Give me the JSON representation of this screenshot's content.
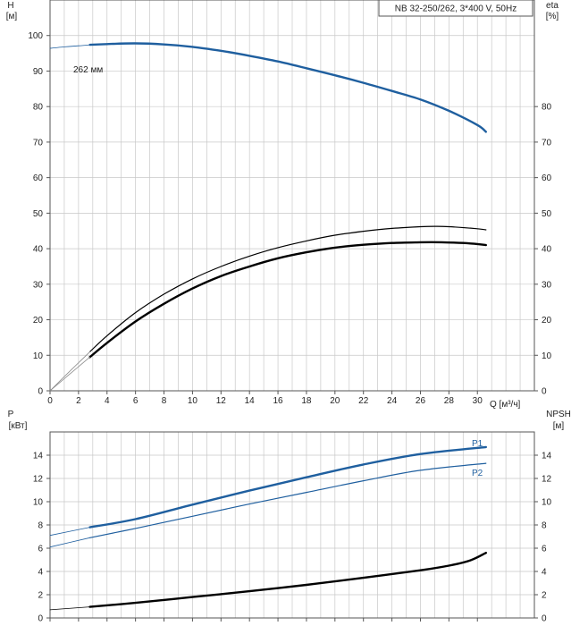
{
  "colors": {
    "blue": "#1f5f9f",
    "black": "#000000",
    "grid": "#c8c8c8",
    "axis": "#555555"
  },
  "legend": {
    "text": "NB 32-250/262, 3*400 V, 50Hz"
  },
  "chart_data": [
    {
      "type": "line",
      "id": "top",
      "left_axis": {
        "name": "H",
        "unit": "[м]"
      },
      "right_axis": {
        "name": "eta",
        "unit": "[%]"
      },
      "x_axis": {
        "label": "Q [м³/ч]"
      },
      "xlim": [
        0,
        34
      ],
      "ylim": [
        0,
        110
      ],
      "x_ticks": [
        0,
        2,
        4,
        6,
        8,
        10,
        12,
        14,
        16,
        18,
        20,
        22,
        24,
        26,
        28,
        30
      ],
      "y_ticks_left": [
        0,
        10,
        20,
        30,
        40,
        50,
        60,
        70,
        80,
        90,
        100
      ],
      "y_ticks_right": [
        0,
        10,
        20,
        30,
        40,
        50,
        60,
        70,
        80
      ],
      "annotations": [
        {
          "text": "262 мм",
          "x": 3.5,
          "y": 97.5
        }
      ],
      "series": [
        {
          "role": "H",
          "color": "blue",
          "width": 2.4,
          "x": [
            2.8,
            4,
            6,
            8,
            10,
            12,
            14,
            16,
            18,
            20,
            22,
            24,
            26,
            28,
            30,
            30.6
          ],
          "y": [
            97.4,
            97.6,
            97.8,
            97.5,
            96.8,
            95.7,
            94.3,
            92.7,
            90.8,
            88.8,
            86.7,
            84.4,
            82.0,
            78.8,
            74.8,
            72.9
          ]
        },
        {
          "role": "H-extension",
          "color": "blue",
          "width": 0.8,
          "x": [
            0,
            1,
            2,
            2.8
          ],
          "y": [
            96.4,
            96.8,
            97.1,
            97.4
          ]
        },
        {
          "role": "eta-upper",
          "color": "black",
          "width": 1.2,
          "x": [
            2.8,
            4,
            6,
            8,
            10,
            12,
            14,
            16,
            18,
            20,
            22,
            24,
            26,
            27,
            28,
            30,
            30.6
          ],
          "y": [
            11.0,
            15.5,
            22.0,
            27.2,
            31.5,
            35.0,
            37.9,
            40.3,
            42.2,
            43.8,
            44.9,
            45.7,
            46.2,
            46.3,
            46.2,
            45.6,
            45.3
          ]
        },
        {
          "role": "eta-lower",
          "color": "black",
          "width": 2.4,
          "x": [
            2.8,
            4,
            6,
            8,
            10,
            12,
            14,
            16,
            18,
            20,
            22,
            24,
            26,
            27.5,
            29,
            30,
            30.6
          ],
          "y": [
            9.5,
            13.5,
            19.5,
            24.5,
            28.8,
            32.3,
            35.0,
            37.3,
            39.0,
            40.3,
            41.1,
            41.6,
            41.8,
            41.8,
            41.6,
            41.3,
            41.0
          ]
        },
        {
          "role": "eta-extension-upper",
          "color": "#888888",
          "width": 0.8,
          "x": [
            0,
            1,
            2,
            2.8
          ],
          "y": [
            0,
            4.0,
            7.9,
            11.0
          ]
        },
        {
          "role": "eta-extension-lower",
          "color": "#888888",
          "width": 0.8,
          "x": [
            0,
            1,
            2,
            2.8
          ],
          "y": [
            0,
            3.4,
            6.8,
            9.5
          ]
        }
      ]
    },
    {
      "type": "line",
      "id": "bottom",
      "left_axis": {
        "name": "P",
        "unit": "[кВт]"
      },
      "right_axis": {
        "name": "NPSH",
        "unit": "[м]"
      },
      "xlim": [
        0,
        34
      ],
      "ylim": [
        0,
        16
      ],
      "x_ticks": [
        0,
        2,
        4,
        6,
        8,
        10,
        12,
        14,
        16,
        18,
        20,
        22,
        24,
        26,
        28,
        30
      ],
      "y_ticks_left": [
        0,
        2,
        4,
        6,
        8,
        10,
        12,
        14
      ],
      "y_ticks_right": [
        0,
        2,
        4,
        6,
        8,
        10,
        12,
        14
      ],
      "labels": [
        {
          "text": "P1",
          "x": 29.8,
          "y": 15.0
        },
        {
          "text": "P2",
          "x": 29.8,
          "y": 12.8
        }
      ],
      "series": [
        {
          "role": "P1",
          "name": "P1",
          "color": "blue",
          "width": 2.4,
          "x": [
            2.8,
            6,
            10,
            14,
            18,
            22,
            26,
            30.6
          ],
          "y": [
            7.8,
            8.5,
            9.75,
            10.95,
            12.1,
            13.2,
            14.1,
            14.7
          ]
        },
        {
          "role": "P2",
          "name": "P2",
          "color": "blue",
          "width": 1.2,
          "x": [
            2.8,
            6,
            10,
            14,
            18,
            22,
            26,
            30.6
          ],
          "y": [
            6.9,
            7.7,
            8.75,
            9.8,
            10.8,
            11.8,
            12.7,
            13.3
          ]
        },
        {
          "role": "P1-extension",
          "color": "blue",
          "width": 0.8,
          "x": [
            0,
            2.8
          ],
          "y": [
            7.1,
            7.8
          ]
        },
        {
          "role": "P2-extension",
          "color": "blue",
          "width": 0.8,
          "x": [
            0,
            2.8
          ],
          "y": [
            6.1,
            6.9
          ]
        },
        {
          "role": "NPSH",
          "color": "black",
          "width": 2.4,
          "x": [
            2.8,
            6,
            10,
            14,
            18,
            22,
            26,
            28,
            29.5,
            30.6
          ],
          "y": [
            0.95,
            1.3,
            1.8,
            2.3,
            2.85,
            3.45,
            4.1,
            4.5,
            4.95,
            5.6
          ]
        },
        {
          "role": "NPSH-extension",
          "color": "black",
          "width": 0.8,
          "x": [
            0,
            2.8
          ],
          "y": [
            0.7,
            0.95
          ]
        }
      ]
    }
  ]
}
